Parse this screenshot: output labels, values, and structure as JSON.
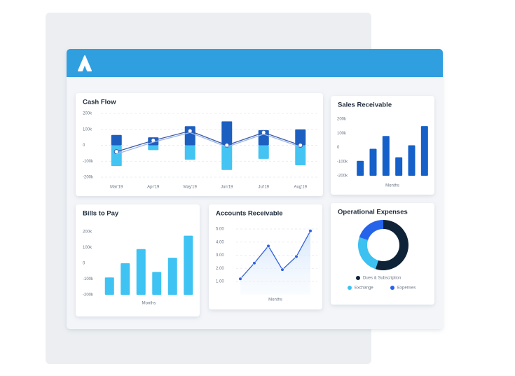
{
  "chart_data": [
    {
      "type": "bar",
      "title": "Cash Flow",
      "categories": [
        "Mar'19",
        "Apr'19",
        "May'19",
        "Jun'19",
        "Jul'19",
        "Aug'19"
      ],
      "series": [
        {
          "type": "bar",
          "color": "#1c5fc0",
          "values": [
            65000,
            50000,
            120000,
            150000,
            95000,
            100000
          ]
        },
        {
          "type": "bar",
          "color": "#43c4f2",
          "values": [
            -130000,
            -30000,
            -90000,
            -155000,
            -85000,
            -125000
          ]
        },
        {
          "type": "line",
          "color": "#3a5aa8",
          "markers": true,
          "values": [
            -40000,
            30000,
            90000,
            0,
            80000,
            0
          ]
        },
        {
          "type": "line",
          "color": "#9fb8e6",
          "markers": false,
          "values": [
            -55000,
            20000,
            80000,
            -10000,
            70000,
            -10000
          ]
        }
      ],
      "ylim": [
        -200000,
        200000
      ],
      "yticks": [
        {
          "value": 200000,
          "label": "200k"
        },
        {
          "value": 100000,
          "label": "100k"
        },
        0,
        {
          "value": -100000,
          "label": "-100k"
        },
        {
          "value": -200000,
          "label": "-200k"
        }
      ],
      "grid": true
    },
    {
      "type": "bar",
      "title": "Sales Receivable",
      "xlabel": "Months",
      "categories": [
        null,
        null,
        null,
        null,
        null,
        null
      ],
      "values": [
        -95000,
        -10000,
        80000,
        -70000,
        15000,
        150000
      ],
      "color": "#1560c9",
      "ylim": [
        -200000,
        200000
      ],
      "yticks": [
        {
          "value": 200000,
          "label": "200k"
        },
        {
          "value": 100000,
          "label": "100k"
        },
        0,
        {
          "value": -100000,
          "label": "-100k"
        },
        {
          "value": -200000,
          "label": "-200k"
        }
      ],
      "grid": false
    },
    {
      "type": "bar",
      "title": "Bills to Pay",
      "xlabel": "Months",
      "categories": [
        null,
        null,
        null,
        null,
        null,
        null
      ],
      "values": [
        -90000,
        0,
        90000,
        -55000,
        35000,
        175000
      ],
      "color": "#3ec3f2",
      "ylim": [
        -200000,
        200000
      ],
      "yticks": [
        {
          "value": 200000,
          "label": "200k"
        },
        {
          "value": 100000,
          "label": "100k"
        },
        0,
        {
          "value": -100000,
          "label": "-100k"
        },
        {
          "value": -200000,
          "label": "-200k"
        }
      ],
      "grid": false
    },
    {
      "type": "line",
      "title": "Accounts Receivable",
      "xlabel": "Months",
      "categories": [
        null,
        null,
        null,
        null,
        null,
        null
      ],
      "values": [
        1.2,
        2.4,
        3.7,
        1.9,
        2.9,
        4.85
      ],
      "color": "#2f62e0",
      "area": true,
      "ylim": [
        0,
        5.5
      ],
      "yticks": [
        {
          "value": 5,
          "label": "5.00"
        },
        {
          "value": 4,
          "label": "4.00"
        },
        {
          "value": 3,
          "label": "3.00"
        },
        {
          "value": 2,
          "label": "2.00"
        },
        {
          "value": 1,
          "label": "1.00"
        }
      ],
      "grid": true
    },
    {
      "type": "pie",
      "title": "Operational Expenses",
      "donut": true,
      "categories": [
        "Dues & Subscription",
        "Exchange",
        "Expenses"
      ],
      "values": [
        55,
        25,
        20
      ],
      "colors": [
        "#0f2338",
        "#3cc1f0",
        "#2563eb"
      ]
    }
  ]
}
